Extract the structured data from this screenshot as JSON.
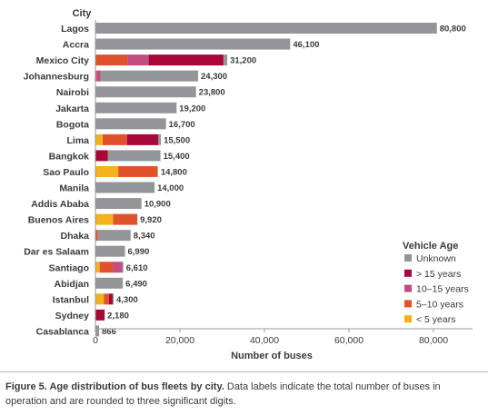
{
  "chart_data": {
    "type": "bar",
    "orientation": "horizontal",
    "stacked": true,
    "category_axis_title": "City",
    "xlabel": "Number of buses",
    "xlim": [
      0,
      90000
    ],
    "xticks": [
      "0",
      "20,000",
      "40,000",
      "60,000",
      "80,000"
    ],
    "xtick_values": [
      0,
      20000,
      40000,
      60000,
      80000
    ],
    "grid": false,
    "legend": {
      "title": "Vehicle Age",
      "placement": "right"
    },
    "categories": [
      "Lagos",
      "Accra",
      "Mexico City",
      "Johannesburg",
      "Nairobi",
      "Jakarta",
      "Bogota",
      "Lima",
      "Bangkok",
      "Sao Paulo",
      "Manila",
      "Addis Ababa",
      "Buenos Aires",
      "Dhaka",
      "Dar es Salaam",
      "Santiago",
      "Abidjan",
      "Istanbul",
      "Sydney",
      "Casablanca"
    ],
    "totals_labels": [
      "80,800",
      "46,100",
      "31,200",
      "24,300",
      "23,800",
      "19,200",
      "16,700",
      "15,500",
      "15,400",
      "14,800",
      "14,000",
      "10,900",
      "9,920",
      "8,340",
      "6,990",
      "6,610",
      "6,490",
      "4,300",
      "2,180",
      "866"
    ],
    "series": [
      {
        "name": "< 5 years",
        "color": "#f3b21c",
        "values": [
          0,
          0,
          0,
          0,
          0,
          0,
          0,
          1700,
          0,
          5400,
          0,
          0,
          4200,
          0,
          0,
          1000,
          0,
          2000,
          0,
          0
        ]
      },
      {
        "name": "5–10 years",
        "color": "#e0522c",
        "values": [
          0,
          0,
          7600,
          400,
          0,
          0,
          0,
          5800,
          0,
          9300,
          0,
          0,
          5720,
          600,
          0,
          3200,
          0,
          1200,
          0,
          0
        ]
      },
      {
        "name": "10–15 years",
        "color": "#c14d84",
        "values": [
          0,
          0,
          5000,
          800,
          0,
          0,
          0,
          0,
          0,
          0,
          0,
          0,
          0,
          0,
          0,
          2200,
          0,
          0,
          0,
          0
        ]
      },
      {
        "name": "> 15 years",
        "color": "#a8073a",
        "values": [
          0,
          0,
          17700,
          0,
          0,
          0,
          0,
          7400,
          2900,
          0,
          0,
          0,
          0,
          0,
          0,
          0,
          0,
          900,
          2180,
          0
        ]
      },
      {
        "name": "Unknown",
        "color": "#939598",
        "values": [
          80800,
          46100,
          900,
          23100,
          23800,
          19200,
          16700,
          600,
          12500,
          100,
          14000,
          10900,
          0,
          7740,
          6990,
          210,
          6490,
          200,
          0,
          866
        ]
      }
    ],
    "legend_order": [
      "Unknown",
      "> 15 years",
      "10–15 years",
      "5–10 years",
      "< 5 years"
    ]
  },
  "caption": {
    "bold": "Figure 5. Age distribution of bus fleets by city.",
    "text": " Data labels indicate the total number of buses in operation and are rounded to three significant digits."
  }
}
